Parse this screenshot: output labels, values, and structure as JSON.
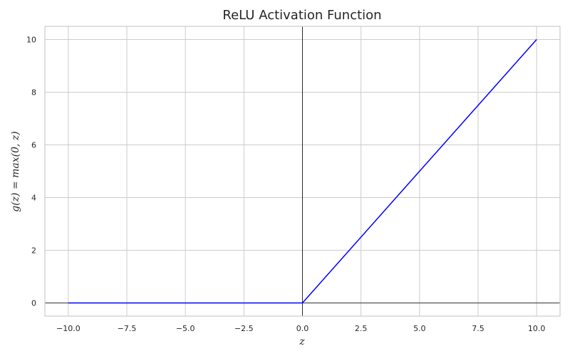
{
  "chart_data": {
    "type": "line",
    "title": "ReLU Activation Function",
    "xlabel": "z",
    "ylabel": "g(z) = max(0, z)",
    "xlim": [
      -11,
      11
    ],
    "ylim": [
      -0.5,
      10.5
    ],
    "x_ticks": [
      -10.0,
      -7.5,
      -5.0,
      -2.5,
      0.0,
      2.5,
      5.0,
      7.5,
      10.0
    ],
    "x_tick_labels": [
      "−10.0",
      "−7.5",
      "−5.0",
      "−2.5",
      "0.0",
      "2.5",
      "5.0",
      "7.5",
      "10.0"
    ],
    "y_ticks": [
      0,
      2,
      4,
      6,
      8,
      10
    ],
    "y_tick_labels": [
      "0",
      "2",
      "4",
      "6",
      "8",
      "10"
    ],
    "grid": true,
    "reference_lines": {
      "horizontal_at_y": 0,
      "vertical_at_x": 0
    },
    "series": [
      {
        "color": "#0000ff",
        "x": [
          -10,
          0,
          10
        ],
        "y": [
          0,
          0,
          10
        ]
      }
    ],
    "colors": {
      "grid": "#cccccc",
      "reference": "#000000",
      "frame": "#cccccc"
    }
  }
}
